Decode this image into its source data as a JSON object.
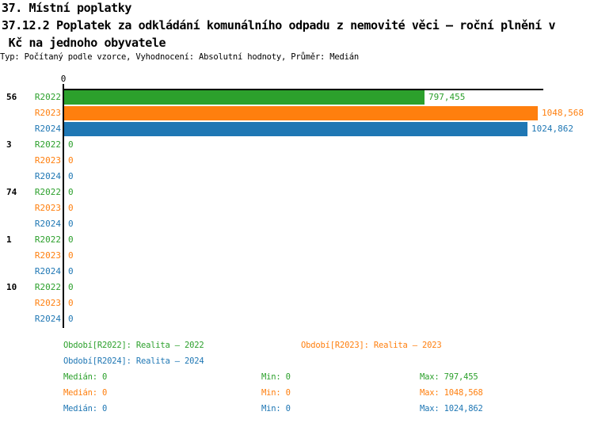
{
  "header": {
    "section_title": "37. Místní poplatky",
    "title_lines": [
      "37.12.2 Poplatek za odkládání komunálního odpadu z nemovité věci – roční plnění v",
      " Kč na jednoho obyvatele"
    ],
    "meta": "Typ: Počítaný podle vzorce, Vyhodnocení: Absolutní hodnoty, Průměr: Medián"
  },
  "chart_data": {
    "type": "bar",
    "orientation": "horizontal",
    "title": "37.12.2 Poplatek za odkládání komunálního odpadu z nemovité věci – roční plnění v Kč na jednoho obyvatele",
    "categories": [
      "56",
      "3",
      "74",
      "1",
      "10"
    ],
    "series": [
      {
        "name": "R2022",
        "label": "Realita – 2022",
        "color": "#2CA02C",
        "values": [
          797.455,
          0,
          0,
          0,
          0
        ],
        "value_labels": [
          "797,455",
          "0",
          "0",
          "0",
          "0"
        ]
      },
      {
        "name": "R2023",
        "label": "Realita – 2023",
        "color": "#FF7F0E",
        "values": [
          1048.568,
          0,
          0,
          0,
          0
        ],
        "value_labels": [
          "1048,568",
          "0",
          "0",
          "0",
          "0"
        ]
      },
      {
        "name": "R2024",
        "label": "Realita – 2024",
        "color": "#1F77B4",
        "values": [
          1024.862,
          0,
          0,
          0,
          0
        ],
        "value_labels": [
          "1024,862",
          "0",
          "0",
          "0",
          "0"
        ]
      }
    ],
    "xlim": [
      0,
      1060
    ],
    "tick_labels": [
      "0"
    ],
    "grid": false,
    "axis_color": "#000000",
    "legend_position": "bottom"
  },
  "legend": {
    "period_rows": [
      [
        {
          "series": "R2022",
          "text": "Období[R2022]: Realita – 2022"
        },
        {
          "series": "R2023",
          "text": "Období[R2023]: Realita – 2023"
        }
      ],
      [
        {
          "series": "R2024",
          "text": "Období[R2024]: Realita – 2024"
        }
      ]
    ],
    "stats_rows": [
      {
        "series": "R2022",
        "median": "Medián: 0",
        "min": "Min: 0",
        "max": "Max: 797,455"
      },
      {
        "series": "R2023",
        "median": "Medián: 0",
        "min": "Min: 0",
        "max": "Max: 1048,568"
      },
      {
        "series": "R2024",
        "median": "Medián: 0",
        "min": "Min: 0",
        "max": "Max: 1024,862"
      }
    ]
  }
}
